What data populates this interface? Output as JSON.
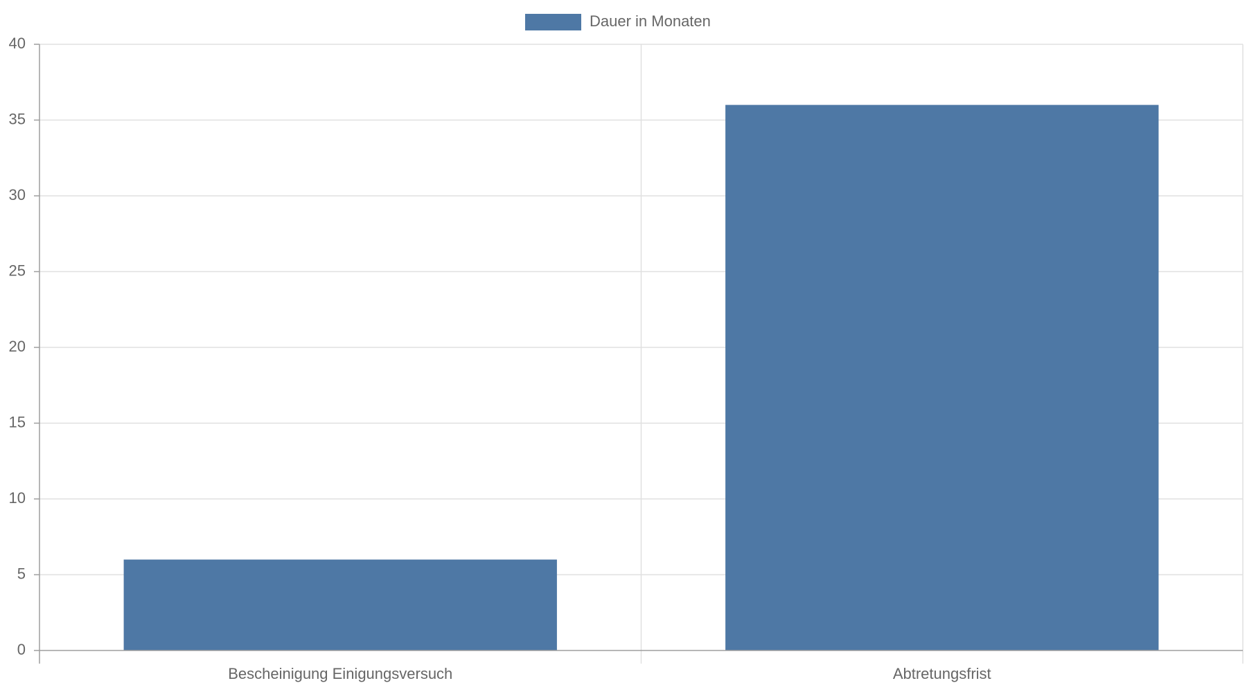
{
  "chart_data": {
    "type": "bar",
    "categories": [
      "Bescheinigung Einigungsversuch",
      "Abtretungsfrist"
    ],
    "series": [
      {
        "name": "Dauer in Monaten",
        "values": [
          6,
          36
        ],
        "color": "#4e78a5"
      }
    ],
    "y_ticks": [
      "0",
      "5",
      "10",
      "15",
      "20",
      "25",
      "30",
      "35",
      "40"
    ],
    "ylim": [
      0,
      40
    ],
    "grid": true,
    "legend_position": "top-center",
    "colors": {
      "grid": "#e0e0e0",
      "axis": "#9e9e9e",
      "text": "#666666"
    }
  }
}
